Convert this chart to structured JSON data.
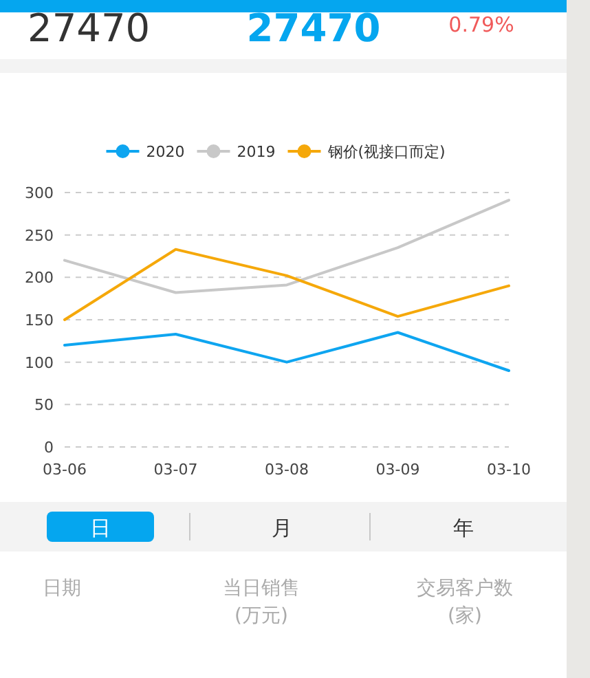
{
  "chart_data": {
    "type": "line",
    "categories": [
      "03-06",
      "03-07",
      "03-08",
      "03-09",
      "03-10"
    ],
    "series": [
      {
        "name": "2020",
        "color": "#0ea5f0",
        "values": [
          120,
          133,
          100,
          135,
          90
        ]
      },
      {
        "name": "2019",
        "color": "#c8c8c8",
        "values": [
          220,
          182,
          191,
          235,
          291
        ]
      },
      {
        "name": "钢价(视接口而定)",
        "color": "#f5a80a",
        "values": [
          150,
          233,
          202,
          154,
          190
        ]
      }
    ],
    "ylim": [
      0,
      300
    ],
    "yticks": [
      0,
      50,
      100,
      150,
      200,
      250,
      300
    ],
    "grid": "y",
    "legend": "top",
    "annotations": [
      "27470",
      "27470",
      "0.79%",
      "日",
      "月",
      "年",
      "日期",
      "当日销售(万元)",
      "交易客户数(家)"
    ]
  }
}
